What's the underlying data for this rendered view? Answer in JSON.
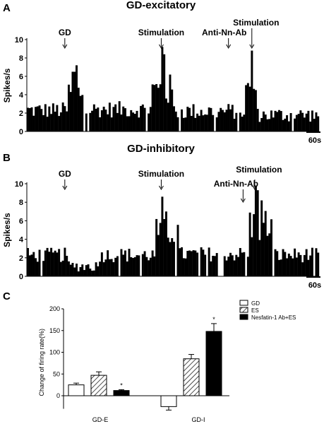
{
  "chart_data": [
    {
      "panel": "A",
      "type": "bar",
      "title": "GD-excitatory",
      "ylabel": "Spikes/s",
      "yticks": [
        "0",
        "2",
        "4",
        "6",
        "8",
        "10"
      ],
      "ylim": [
        0,
        10
      ],
      "scale_bar": "60s",
      "events": [
        {
          "label": "GD",
          "at": 0.13
        },
        {
          "label": "Stimulation",
          "at": 0.46
        },
        {
          "label": "Anti-Nn-Ab",
          "at": 0.69
        },
        {
          "label": "Stimulation",
          "at": 0.77
        }
      ],
      "segments": [
        {
          "from": 0.0,
          "to": 0.14,
          "base": 2.3,
          "noise": 0.9
        },
        {
          "from": 0.14,
          "to": 0.2,
          "base": 4.2,
          "noise": 1.4
        },
        {
          "from": 0.2,
          "to": 0.43,
          "base": 2.4,
          "noise": 0.9
        },
        {
          "from": 0.43,
          "to": 0.5,
          "base": 4.5,
          "noise": 1.8
        },
        {
          "from": 0.5,
          "to": 0.75,
          "base": 2.2,
          "noise": 0.9
        },
        {
          "from": 0.75,
          "to": 0.79,
          "base": 4.3,
          "noise": 1.7
        },
        {
          "from": 0.79,
          "to": 1.0,
          "base": 1.8,
          "noise": 0.8
        }
      ],
      "peaks": [
        {
          "at": 0.16,
          "value": 6.5
        },
        {
          "at": 0.17,
          "value": 7.2
        },
        {
          "at": 0.46,
          "value": 9.2
        },
        {
          "at": 0.47,
          "value": 8.4
        },
        {
          "at": 0.77,
          "value": 8.8
        }
      ]
    },
    {
      "panel": "B",
      "type": "bar",
      "title": "GD-inhibitory",
      "ylabel": "Spikes/s",
      "yticks": [
        "0",
        "2",
        "4",
        "6",
        "8",
        "10"
      ],
      "ylim": [
        0,
        10
      ],
      "scale_bar": "60s",
      "events": [
        {
          "label": "GD",
          "at": 0.13
        },
        {
          "label": "Stimulation",
          "at": 0.46
        },
        {
          "label": "Anti-Nn-Ab",
          "at": 0.74
        },
        {
          "label": "Stimulation",
          "at": 0.78
        }
      ],
      "segments": [
        {
          "from": 0.0,
          "to": 0.14,
          "base": 2.3,
          "noise": 0.8
        },
        {
          "from": 0.14,
          "to": 0.25,
          "base": 1.1,
          "noise": 0.6
        },
        {
          "from": 0.25,
          "to": 0.44,
          "base": 2.3,
          "noise": 0.8
        },
        {
          "from": 0.44,
          "to": 0.52,
          "base": 4.8,
          "noise": 1.5
        },
        {
          "from": 0.52,
          "to": 0.76,
          "base": 2.4,
          "noise": 0.8
        },
        {
          "from": 0.76,
          "to": 0.84,
          "base": 5.5,
          "noise": 2.0
        },
        {
          "from": 0.84,
          "to": 1.0,
          "base": 2.3,
          "noise": 0.8
        }
      ],
      "peaks": [
        {
          "at": 0.46,
          "value": 8.6
        },
        {
          "at": 0.48,
          "value": 7.0
        },
        {
          "at": 0.78,
          "value": 9.8
        },
        {
          "at": 0.79,
          "value": 9.3
        },
        {
          "at": 0.8,
          "value": 8.2
        }
      ]
    },
    {
      "panel": "C",
      "type": "bar",
      "ylabel": "Change of firing rate(%)",
      "yticks": [
        "0",
        "50",
        "100",
        "150",
        "200"
      ],
      "ylim": [
        -30,
        200
      ],
      "categories": [
        "GD-E",
        "GD-I"
      ],
      "series": [
        {
          "name": "GD",
          "values": [
            25,
            -25
          ],
          "errors": [
            4,
            8
          ],
          "pattern": "white"
        },
        {
          "name": "ES",
          "values": [
            47,
            85
          ],
          "errors": [
            8,
            10
          ],
          "pattern": "hatch"
        },
        {
          "name": "Nesfatin-1 Ab+ES",
          "values": [
            12,
            148
          ],
          "errors": [
            2,
            18
          ],
          "pattern": "black"
        }
      ],
      "annotations": [
        {
          "category": 0,
          "series": 2,
          "text": "*"
        },
        {
          "category": 1,
          "series": 2,
          "text": "*"
        }
      ]
    }
  ]
}
